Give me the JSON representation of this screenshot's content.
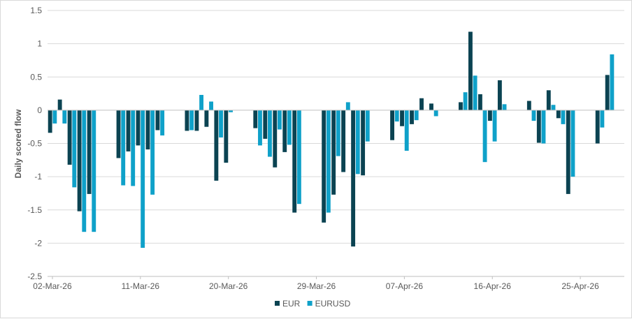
{
  "chart_data": {
    "type": "bar",
    "ylabel": "Daily scored flow",
    "ylim": [
      -2.5,
      1.5
    ],
    "yticks": [
      1.5,
      1,
      0.5,
      0,
      -0.5,
      -1,
      -1.5,
      -2,
      -2.5
    ],
    "ytick_labels": [
      "1.5",
      "1",
      "0.5",
      "0",
      "-0.5",
      "-1",
      "-1.5",
      "-2",
      "-2.5"
    ],
    "x_start": "2026-03-02",
    "x_end": "2026-04-29",
    "xtick_labels": [
      {
        "date": "2026-03-02",
        "label": "02-Mar-26"
      },
      {
        "date": "2026-03-11",
        "label": "11-Mar-26"
      },
      {
        "date": "2026-03-20",
        "label": "20-Mar-26"
      },
      {
        "date": "2026-03-29",
        "label": "29-Mar-26"
      },
      {
        "date": "2026-04-07",
        "label": "07-Apr-26"
      },
      {
        "date": "2026-04-16",
        "label": "16-Apr-26"
      },
      {
        "date": "2026-04-25",
        "label": "25-Apr-26"
      }
    ],
    "legend_position": "bottom",
    "grid": "horizontal",
    "series": [
      {
        "name": "EUR",
        "color": "#0b4352",
        "points": [
          {
            "date": "2026-03-02",
            "value": -0.34
          },
          {
            "date": "2026-03-03",
            "value": 0.16
          },
          {
            "date": "2026-03-04",
            "value": -0.82
          },
          {
            "date": "2026-03-05",
            "value": -1.52
          },
          {
            "date": "2026-03-06",
            "value": -1.26
          },
          {
            "date": "2026-03-09",
            "value": -0.72
          },
          {
            "date": "2026-03-10",
            "value": -0.62
          },
          {
            "date": "2026-03-11",
            "value": -0.53
          },
          {
            "date": "2026-03-12",
            "value": -0.59
          },
          {
            "date": "2026-03-13",
            "value": -0.3
          },
          {
            "date": "2026-03-16",
            "value": -0.31
          },
          {
            "date": "2026-03-17",
            "value": -0.31
          },
          {
            "date": "2026-03-18",
            "value": -0.25
          },
          {
            "date": "2026-03-19",
            "value": -1.06
          },
          {
            "date": "2026-03-20",
            "value": -0.79
          },
          {
            "date": "2026-03-23",
            "value": -0.27
          },
          {
            "date": "2026-03-24",
            "value": -0.43
          },
          {
            "date": "2026-03-25",
            "value": -0.86
          },
          {
            "date": "2026-03-26",
            "value": -0.63
          },
          {
            "date": "2026-03-27",
            "value": -1.54
          },
          {
            "date": "2026-03-30",
            "value": -1.69
          },
          {
            "date": "2026-03-31",
            "value": -1.27
          },
          {
            "date": "2026-04-01",
            "value": -0.93
          },
          {
            "date": "2026-04-02",
            "value": -2.05
          },
          {
            "date": "2026-04-03",
            "value": -0.98
          },
          {
            "date": "2026-04-06",
            "value": -0.45
          },
          {
            "date": "2026-04-07",
            "value": -0.24
          },
          {
            "date": "2026-04-08",
            "value": -0.21
          },
          {
            "date": "2026-04-09",
            "value": 0.18
          },
          {
            "date": "2026-04-10",
            "value": 0.1
          },
          {
            "date": "2026-04-13",
            "value": 0.12
          },
          {
            "date": "2026-04-14",
            "value": 1.18
          },
          {
            "date": "2026-04-15",
            "value": 0.24
          },
          {
            "date": "2026-04-16",
            "value": -0.16
          },
          {
            "date": "2026-04-17",
            "value": 0.45
          },
          {
            "date": "2026-04-20",
            "value": 0.14
          },
          {
            "date": "2026-04-21",
            "value": -0.49
          },
          {
            "date": "2026-04-22",
            "value": 0.3
          },
          {
            "date": "2026-04-23",
            "value": -0.12
          },
          {
            "date": "2026-04-24",
            "value": -1.26
          },
          {
            "date": "2026-04-27",
            "value": -0.5
          },
          {
            "date": "2026-04-28",
            "value": 0.53
          }
        ]
      },
      {
        "name": "EURUSD",
        "color": "#0fa1c9",
        "points": [
          {
            "date": "2026-03-02",
            "value": -0.2
          },
          {
            "date": "2026-03-03",
            "value": -0.2
          },
          {
            "date": "2026-03-04",
            "value": -1.16
          },
          {
            "date": "2026-03-05",
            "value": -1.83
          },
          {
            "date": "2026-03-06",
            "value": -1.83
          },
          {
            "date": "2026-03-09",
            "value": -1.13
          },
          {
            "date": "2026-03-10",
            "value": -1.14
          },
          {
            "date": "2026-03-11",
            "value": -2.07
          },
          {
            "date": "2026-03-12",
            "value": -1.27
          },
          {
            "date": "2026-03-13",
            "value": -0.38
          },
          {
            "date": "2026-03-16",
            "value": -0.3
          },
          {
            "date": "2026-03-17",
            "value": 0.23
          },
          {
            "date": "2026-03-18",
            "value": 0.13
          },
          {
            "date": "2026-03-19",
            "value": -0.41
          },
          {
            "date": "2026-03-20",
            "value": -0.03
          },
          {
            "date": "2026-03-23",
            "value": -0.53
          },
          {
            "date": "2026-03-24",
            "value": -0.7
          },
          {
            "date": "2026-03-25",
            "value": -0.29
          },
          {
            "date": "2026-03-26",
            "value": -0.52
          },
          {
            "date": "2026-03-27",
            "value": -1.41
          },
          {
            "date": "2026-03-30",
            "value": -1.54
          },
          {
            "date": "2026-03-31",
            "value": -0.69
          },
          {
            "date": "2026-04-01",
            "value": 0.12
          },
          {
            "date": "2026-04-02",
            "value": -0.96
          },
          {
            "date": "2026-04-03",
            "value": -0.47
          },
          {
            "date": "2026-04-06",
            "value": -0.17
          },
          {
            "date": "2026-04-07",
            "value": -0.61
          },
          {
            "date": "2026-04-08",
            "value": -0.15
          },
          {
            "date": "2026-04-10",
            "value": -0.09
          },
          {
            "date": "2026-04-13",
            "value": 0.27
          },
          {
            "date": "2026-04-14",
            "value": 0.52
          },
          {
            "date": "2026-04-15",
            "value": -0.78
          },
          {
            "date": "2026-04-16",
            "value": -0.47
          },
          {
            "date": "2026-04-17",
            "value": 0.09
          },
          {
            "date": "2026-04-20",
            "value": -0.16
          },
          {
            "date": "2026-04-21",
            "value": -0.5
          },
          {
            "date": "2026-04-22",
            "value": 0.08
          },
          {
            "date": "2026-04-23",
            "value": -0.21
          },
          {
            "date": "2026-04-24",
            "value": -1.0
          },
          {
            "date": "2026-04-27",
            "value": -0.26
          },
          {
            "date": "2026-04-28",
            "value": 0.84
          }
        ]
      }
    ]
  }
}
